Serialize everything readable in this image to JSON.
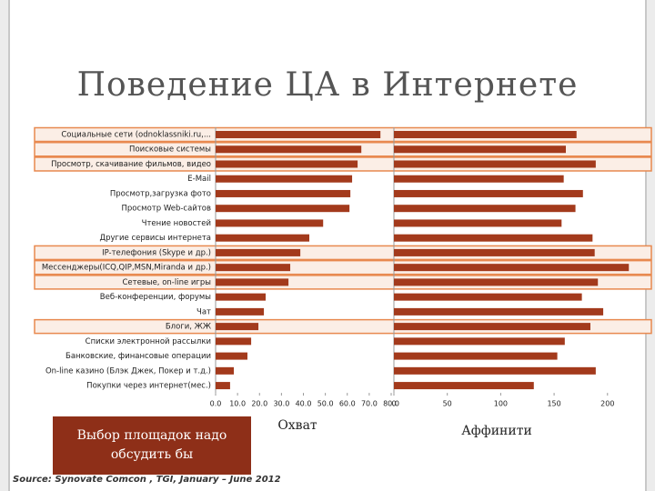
{
  "title": "Поведение ЦА в Интернете",
  "note": "Выбор площадок надо обсудить бы",
  "source": "Source: Synovate Comcon , TGI, January – June 2012",
  "chart_data": [
    {
      "type": "bar",
      "orientation": "horizontal",
      "xlabel": "Охват",
      "color": "#a33a1c",
      "categories": [
        "Социальные сети (odnoklassniki.ru,...",
        "Поисковые системы",
        "Просмотр, скачивание фильмов, видео",
        "E-Mail",
        "Просмотр,загрузка фото",
        "Просмотр Web-сайтов",
        "Чтение новостей",
        "Другие сервисы интернета",
        "IP-телефония (Skype и др.)",
        "Мессенджеры(ICQ,QIP,MSN,Miranda и др.)",
        "Сетевые, on-line игры",
        "Веб-конференции, форумы",
        "Чат",
        "Блоги, ЖЖ",
        "Списки электронной рассылки",
        "Банковские, финансовые операции",
        "On-line казино (Блэк Джек, Покер и т.д.)",
        "Покупки через интернет(мес.)"
      ],
      "values": [
        75.1,
        66.4,
        64.7,
        62.2,
        61.4,
        61.0,
        49.0,
        42.7,
        38.6,
        34.0,
        33.2,
        22.8,
        22.0,
        19.5,
        16.2,
        14.5,
        8.3,
        6.6
      ],
      "highlight_rows": [
        0,
        1,
        2,
        8,
        9,
        10,
        13
      ],
      "xlim": [
        0,
        80
      ],
      "xticks": [
        {
          "value": 0,
          "label": "0.0"
        },
        {
          "value": 10,
          "label": "10.0"
        },
        {
          "value": 20,
          "label": "20.0"
        },
        {
          "value": 30,
          "label": "30.0"
        },
        {
          "value": 40,
          "label": "40.0"
        },
        {
          "value": 50,
          "label": "50.0"
        },
        {
          "value": 60,
          "label": "60.0"
        },
        {
          "value": 70,
          "label": "70.0"
        },
        {
          "value": 80,
          "label": "80.0"
        }
      ]
    },
    {
      "type": "bar",
      "orientation": "horizontal",
      "xlabel": "Аффинити",
      "color": "#a33a1c",
      "values": [
        171,
        161,
        189,
        159,
        177,
        170,
        157,
        186,
        188,
        220,
        191,
        176,
        196,
        184,
        160,
        153,
        189,
        131
      ],
      "xlim": [
        0,
        230
      ],
      "xticks": [
        0,
        50,
        100,
        150,
        200
      ]
    }
  ]
}
